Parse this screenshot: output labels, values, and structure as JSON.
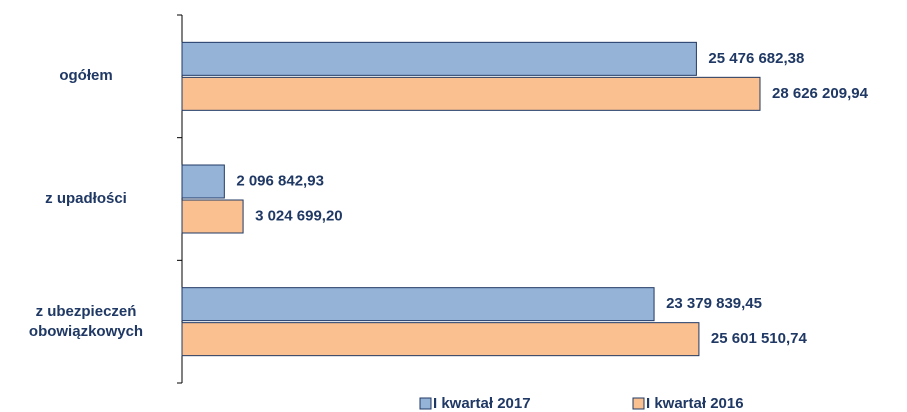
{
  "chart_data": {
    "type": "bar",
    "orientation": "horizontal",
    "categories": [
      "ogółem",
      "z upadłości",
      "z ubezpieczeń obowiązkowych"
    ],
    "series": [
      {
        "name": "I kwartał 2017",
        "color": "#95b3d7",
        "values": [
          25476682.38,
          2096842.93,
          23379839.45
        ],
        "value_labels": [
          "25 476 682,38",
          "2 096 842,93",
          "23 379 839,45"
        ]
      },
      {
        "name": "I kwartał 2016",
        "color": "#fac090",
        "values": [
          28626209.94,
          3024699.2,
          25601510.74
        ],
        "value_labels": [
          "28 626 209,94",
          "3 024 699,20",
          "25 601 510,74"
        ]
      }
    ],
    "legend": "bottom"
  }
}
